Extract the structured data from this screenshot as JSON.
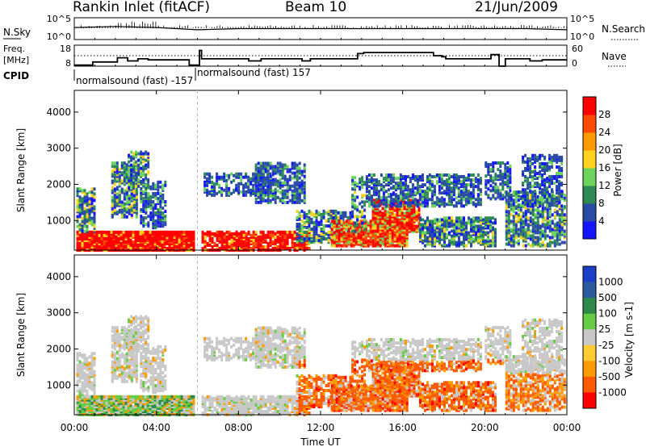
{
  "header": {
    "site": "Rankin Inlet (fitACF)",
    "beam": "Beam 10",
    "date": "21/Jun/2009"
  },
  "chart_data": [
    {
      "type": "line",
      "panel": "noise",
      "left_label": "N.Sky",
      "right_label": "N.Search",
      "left_ticks": [
        "10^5",
        "10^0"
      ],
      "right_ticks": [
        "10^5",
        "10^0"
      ],
      "x_hours": [
        0,
        2,
        4,
        6,
        8,
        10,
        12,
        14,
        16,
        18,
        20,
        22,
        24
      ],
      "n_sky_relative": [
        0.55,
        0.6,
        0.55,
        0.45,
        0.5,
        0.5,
        0.5,
        0.5,
        0.5,
        0.5,
        0.5,
        0.5,
        0.45
      ]
    },
    {
      "type": "line",
      "panel": "frequency",
      "left_label_line1": "Freq.",
      "left_label_line2": "[MHz]",
      "right_label": "Nave",
      "left_ticks": [
        "18",
        "8"
      ],
      "right_ticks": [
        "60",
        "0"
      ],
      "freq_steps": [
        [
          0,
          0.9,
          8.5
        ],
        [
          0.9,
          2.1,
          10
        ],
        [
          2.1,
          2.6,
          12
        ],
        [
          2.6,
          3.1,
          10.5
        ],
        [
          3.1,
          3.6,
          11.5
        ],
        [
          3.6,
          5.6,
          11
        ],
        [
          5.6,
          6.1,
          8.5
        ],
        [
          6.1,
          6.2,
          15.5
        ],
        [
          6.2,
          8.5,
          11.5
        ],
        [
          8.5,
          9.1,
          10.5
        ],
        [
          9.1,
          11.1,
          11.5
        ],
        [
          11.1,
          11.5,
          10.5
        ],
        [
          11.5,
          13.8,
          11.5
        ],
        [
          13.8,
          14.1,
          14
        ],
        [
          14.1,
          17.5,
          14.5
        ],
        [
          17.5,
          17.9,
          13
        ],
        [
          17.9,
          18.1,
          12.5
        ],
        [
          18.1,
          20.3,
          11.5
        ],
        [
          20.3,
          20.7,
          13.5
        ],
        [
          20.7,
          21.0,
          8
        ],
        [
          21.0,
          22.2,
          11.5
        ],
        [
          22.2,
          22.8,
          10.5
        ],
        [
          22.8,
          24,
          11
        ]
      ],
      "cpid_label": "CPID",
      "cpid_segments": [
        {
          "label": "normalsound (fast)",
          "id": "-157"
        },
        {
          "label": "normalsound (fast)",
          "id": "157"
        }
      ]
    },
    {
      "type": "heatmap",
      "panel": "power",
      "ylabel": "Slant Range [km]",
      "yticks": [
        1000,
        2000,
        3000,
        4000
      ],
      "ylim": [
        180,
        4600
      ],
      "xlim": [
        0,
        24
      ],
      "colorbar_label": "Power [dB]",
      "colorbar_ticks": [
        4,
        8,
        12,
        16,
        20,
        24,
        28
      ],
      "colors": [
        "#1414ff",
        "#2a4aa8",
        "#2e8a55",
        "#6cd45a",
        "#ffd21e",
        "#ff9a00",
        "#ff4a00",
        "#ff0000"
      ]
    },
    {
      "type": "heatmap",
      "panel": "velocity",
      "ylabel": "Slant Range [km]",
      "yticks": [
        1000,
        2000,
        3000,
        4000
      ],
      "ylim": [
        180,
        4600
      ],
      "xlim": [
        0,
        24
      ],
      "xticks": [
        "00:00",
        "04:00",
        "08:00",
        "12:00",
        "16:00",
        "20:00",
        "00:00"
      ],
      "xlabel": "Time UT",
      "colorbar_label": "Velocity [m s-1]",
      "colorbar_ticks": [
        "1000",
        "500",
        "100",
        "25",
        "-25",
        "-100",
        "-500",
        "-1000"
      ],
      "colors": [
        "#1d3fc8",
        "#2e5aa0",
        "#2e8a4a",
        "#66cc44",
        "#c8c8c8",
        "#ffcc33",
        "#ff9a00",
        "#ff5a00",
        "#ff0000"
      ]
    }
  ]
}
